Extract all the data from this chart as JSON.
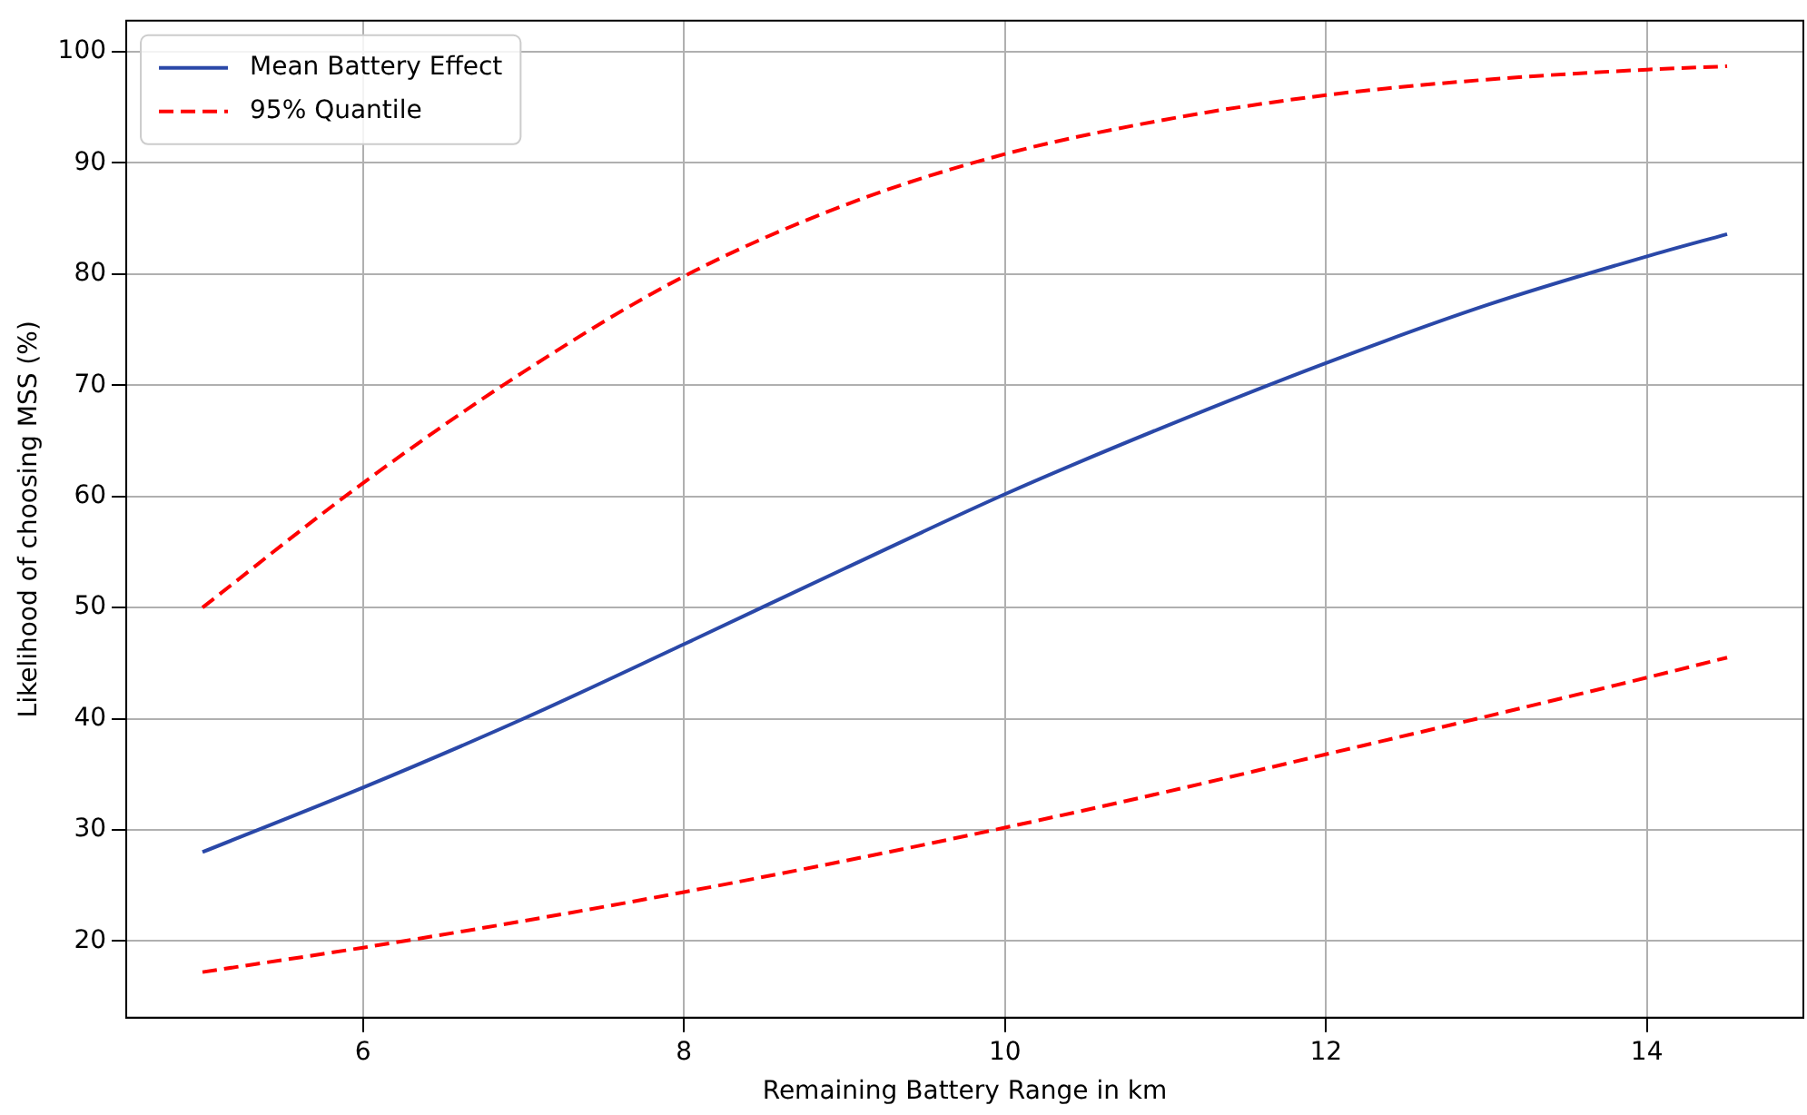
{
  "chart_data": {
    "type": "line",
    "xlabel": "Remaining Battery Range in km",
    "ylabel": "Likelihood of choosing MSS (%)",
    "xlim": [
      4.525,
      14.975
    ],
    "xticks": [
      6,
      8,
      10,
      12,
      14
    ],
    "ylim": [
      13.1,
      102.8
    ],
    "yticks": [
      20,
      30,
      40,
      50,
      60,
      70,
      80,
      90,
      100
    ],
    "grid": true,
    "legend": "top left",
    "marker": "none",
    "series": [
      {
        "name": "Mean Battery Effect",
        "color": "#2a48a8",
        "line_style": "solid",
        "x": [
          5,
          6,
          7,
          8,
          9,
          10,
          11,
          12,
          13,
          14,
          14.5
        ],
        "values": [
          28,
          33.8,
          40,
          46.7,
          53.5,
          60.2,
          66.3,
          72,
          77.2,
          81.6,
          83.6
        ]
      },
      {
        "name": "95% Quantile",
        "color": "#ff0000",
        "line_style": "dashed",
        "x": [
          5,
          6,
          7,
          8,
          9,
          10,
          11,
          12,
          13,
          14,
          14.5
        ],
        "values": [
          50,
          61.2,
          71.2,
          79.8,
          86.2,
          90.8,
          93.9,
          96.1,
          97.5,
          98.4,
          98.7
        ]
      },
      {
        "color": "#ff0000",
        "line_style": "dashed",
        "x": [
          5,
          6,
          7,
          8,
          9,
          10,
          11,
          12,
          13,
          14,
          14.5
        ],
        "values": [
          17.2,
          19.4,
          21.8,
          24.4,
          27.2,
          30.2,
          33.4,
          36.8,
          40.2,
          43.7,
          45.5
        ]
      }
    ]
  }
}
